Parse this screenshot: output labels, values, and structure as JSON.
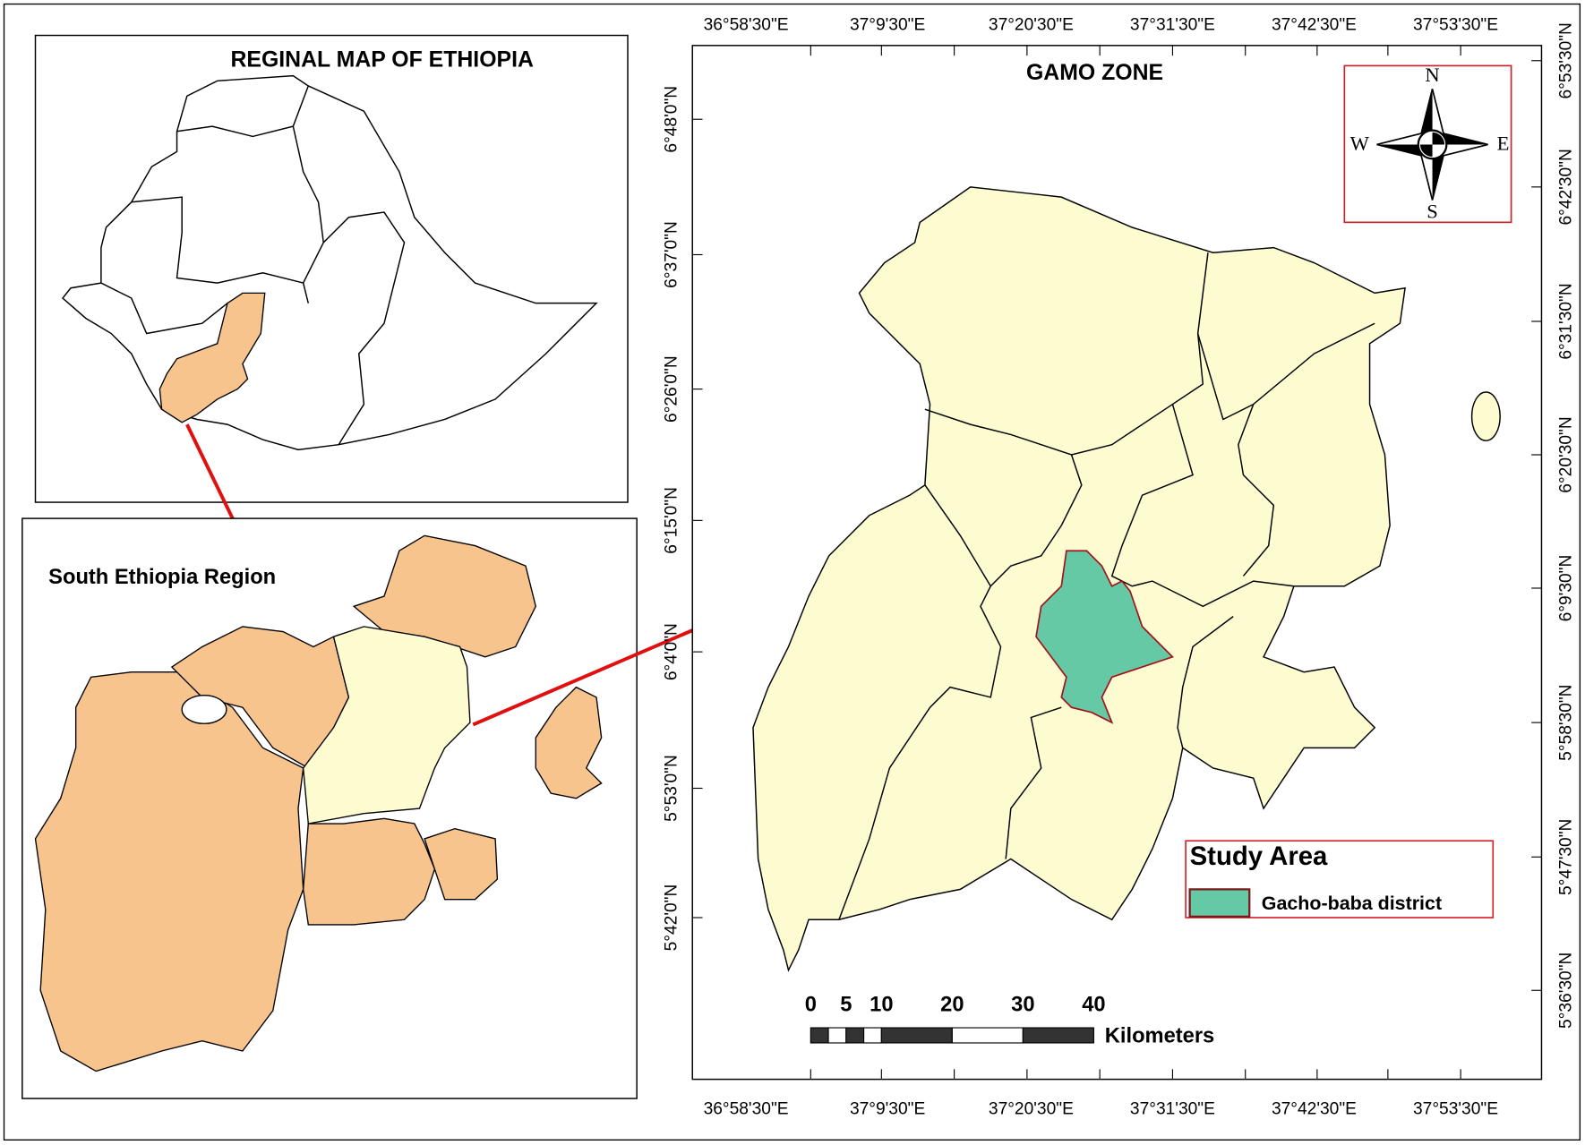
{
  "inset_ethiopia": {
    "title": "REGINAL MAP OF  ETHIOPIA"
  },
  "inset_region": {
    "title": "South Ethiopia Region"
  },
  "main_map": {
    "title": "GAMO ZONE",
    "top_labels": [
      "36°58'30\"E",
      "37°9'30\"E",
      "37°20'30\"E",
      "37°31'30\"E",
      "37°42'30\"E",
      "37°53'30\"E"
    ],
    "bottom_labels": [
      "36°58'30\"E",
      "37°9'30\"E",
      "37°20'30\"E",
      "37°31'30\"E",
      "37°42'30\"E",
      "37°53'30\"E"
    ],
    "left_labels": [
      "6°48'0\"N",
      "6°37'0\"N",
      "6°26'0\"N",
      "6°15'0\"N",
      "6°4'0\"N",
      "5°53'0\"N",
      "5°42'0\"N"
    ],
    "right_labels": [
      "6°53'30\"N",
      "6°42'30\"N",
      "6°31'30\"N",
      "6°20'30\"N",
      "6°9'30\"N",
      "5°58'30\"N",
      "5°47'30\"N",
      "5°36'30\"N"
    ],
    "north_arrow": {
      "n": "N",
      "s": "S",
      "e": "E",
      "w": "W"
    },
    "legend": {
      "title": "Study Area",
      "items": [
        {
          "label": "Gacho-baba district",
          "color": "#66c9a6"
        }
      ]
    },
    "scale_bar": {
      "labels": [
        0,
        5,
        10,
        20,
        30,
        40
      ],
      "unit": "Kilometers"
    }
  }
}
